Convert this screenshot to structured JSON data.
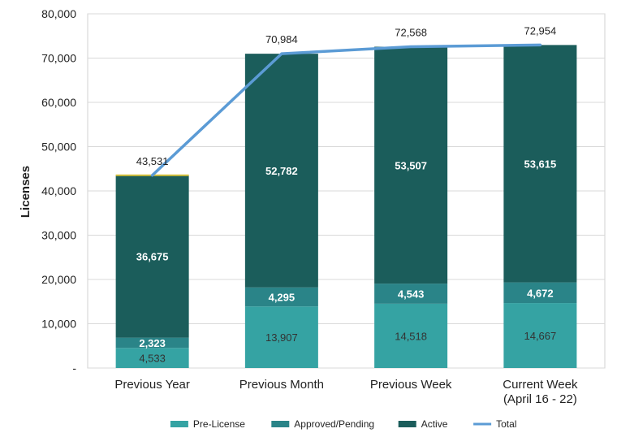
{
  "chart_data": {
    "type": "bar",
    "stacked": true,
    "title": "",
    "xlabel": "",
    "ylabel": "Licenses",
    "ylim": [
      0,
      80000
    ],
    "y_ticks": [
      0,
      10000,
      20000,
      30000,
      40000,
      50000,
      60000,
      70000,
      80000
    ],
    "y_tick_labels": [
      "-",
      "10,000",
      "20,000",
      "30,000",
      "40,000",
      "50,000",
      "60,000",
      "70,000",
      "80,000"
    ],
    "grid": true,
    "legend_position": "bottom",
    "categories": [
      "Previous Year",
      "Previous Month",
      "Previous Week",
      "Current Week\n(April 16 - 22)"
    ],
    "series": [
      {
        "name": "Pre-License",
        "kind": "bar",
        "color": "#35a3a3",
        "values": [
          4533,
          13907,
          14518,
          14667
        ],
        "labels": [
          "4,533",
          "13,907",
          "14,518",
          "14,667"
        ],
        "label_style": "dark"
      },
      {
        "name": "Approved/Pending",
        "kind": "bar",
        "color": "#2a8488",
        "values": [
          2323,
          4295,
          4543,
          4672
        ],
        "labels": [
          "2,323",
          "4,295",
          "4,543",
          "4,672"
        ],
        "label_style": "white"
      },
      {
        "name": "Active",
        "kind": "bar",
        "color": "#1b5d5b",
        "values": [
          36675,
          52782,
          53507,
          53615
        ],
        "labels": [
          "36,675",
          "52,782",
          "53,507",
          "53,615"
        ],
        "label_style": "white"
      },
      {
        "name": "Total",
        "kind": "line",
        "color": "#5b9bd5",
        "values": [
          43531,
          70984,
          72568,
          72954
        ],
        "labels": [
          "43,531",
          "70,984",
          "72,568",
          "72,954"
        ]
      }
    ]
  }
}
